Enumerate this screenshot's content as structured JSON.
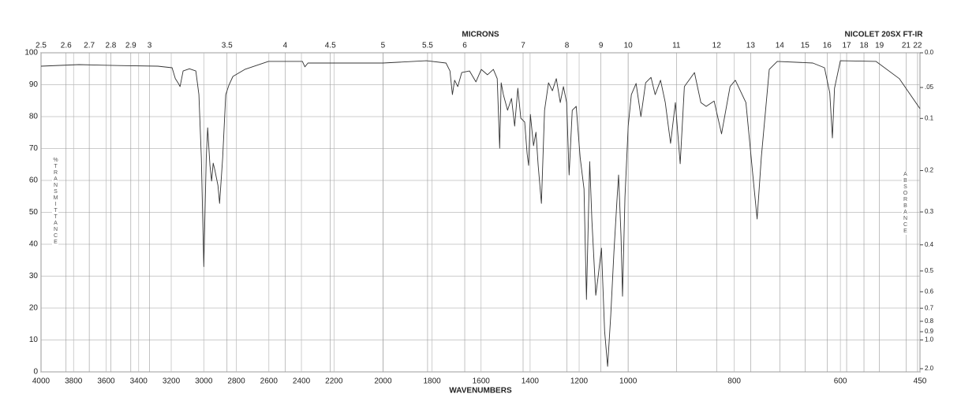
{
  "chart_data": {
    "type": "line",
    "title": "NICOLET 20SX FT-IR",
    "x_label": "WAVENUMBERS",
    "x2_label": "MICRONS",
    "y_label": "%TRANSMITTANCE",
    "y2_label": "ABSORBANCE",
    "xlim": [
      4000,
      450
    ],
    "xscale_breaks": [
      2200,
      1000
    ],
    "xticks": [
      4000,
      3800,
      3600,
      3400,
      3200,
      3000,
      2800,
      2600,
      2400,
      2200,
      2000,
      1800,
      1600,
      1400,
      1200,
      1000,
      800,
      600,
      450
    ],
    "x2ticks": [
      2.5,
      2.6,
      2.7,
      2.8,
      2.9,
      3,
      3.5,
      4,
      4.5,
      5,
      5.5,
      6,
      7,
      8,
      9,
      10,
      11,
      12,
      13,
      14,
      15,
      16,
      17,
      18,
      19,
      21,
      22
    ],
    "ylim": [
      0,
      100
    ],
    "yticks": [
      0,
      10,
      20,
      30,
      40,
      50,
      60,
      70,
      80,
      90,
      100
    ],
    "y2ticks": [
      {
        "value": 0,
        "label": "0.0"
      },
      {
        "value": 0.05,
        "label": ".05"
      },
      0.1,
      0.2,
      0.3,
      0.4,
      0.5,
      0.6,
      0.7,
      0.8,
      0.9,
      {
        "value": 1,
        "label": "1.0"
      },
      {
        "value": 2,
        "label": "2.0"
      }
    ],
    "grid": true,
    "color": "#333333",
    "x": [
      4000,
      3767,
      3524,
      3282,
      3195,
      3175,
      3156,
      3146,
      3127,
      3088,
      3049,
      3030,
      3015,
      3000,
      2985,
      2976,
      2962,
      2952,
      2942,
      2933,
      2913,
      2903,
      2884,
      2865,
      2845,
      2821,
      2748,
      2603,
      2394,
      2379,
      2360,
      2177,
      2000,
      1823,
      1743,
      1727,
      1717,
      1708,
      1695,
      1679,
      1647,
      1621,
      1599,
      1574,
      1550,
      1534,
      1524,
      1518,
      1509,
      1492,
      1476,
      1463,
      1450,
      1438,
      1422,
      1412,
      1406,
      1399,
      1386,
      1376,
      1367,
      1354,
      1341,
      1325,
      1309,
      1293,
      1277,
      1264,
      1251,
      1241,
      1228,
      1212,
      1196,
      1180,
      1170,
      1157,
      1148,
      1132,
      1122,
      1109,
      1096,
      1084,
      1071,
      1058,
      1045,
      1039,
      1029,
      1023,
      1013,
      1000,
      994,
      985,
      976,
      967,
      957,
      949,
      939,
      930,
      920,
      911,
      902,
      894,
      875,
      863,
      853,
      838,
      824,
      808,
      798,
      778,
      764,
      757,
      749,
      734,
      719,
      652,
      630,
      620,
      615,
      611,
      600,
      533,
      489,
      450
    ],
    "values": [
      95.8,
      96.3,
      96,
      95.8,
      95.3,
      91.9,
      90.4,
      89.4,
      94.3,
      95,
      94.3,
      86.9,
      67,
      33,
      67,
      76.5,
      64.7,
      59.8,
      65.4,
      63.5,
      58.5,
      52.8,
      67,
      86.9,
      89.9,
      92.6,
      94.8,
      97.3,
      97.3,
      95.6,
      96.8,
      96.8,
      96.8,
      97.5,
      96.8,
      94.3,
      86.9,
      91.4,
      89.4,
      93.8,
      94.3,
      90.9,
      94.8,
      93.1,
      94.8,
      91.9,
      70.1,
      90.6,
      86.9,
      82,
      85.7,
      77,
      88.9,
      79.5,
      78.3,
      68.4,
      64.7,
      80.7,
      70.9,
      75.1,
      64.7,
      52.8,
      82,
      90.6,
      88.1,
      91.9,
      84.4,
      89.4,
      84.4,
      61.7,
      82,
      83.2,
      67.2,
      57.3,
      22.7,
      65.9,
      47.4,
      24,
      30.1,
      38.8,
      12.8,
      1.7,
      17.8,
      37.5,
      54.8,
      61.7,
      42.5,
      23.7,
      54.8,
      77,
      86.9,
      90.4,
      80,
      90.6,
      92.3,
      86.9,
      91.4,
      84.4,
      71.6,
      84.4,
      65.2,
      89.4,
      93.8,
      84.4,
      83.2,
      84.9,
      74.6,
      89.4,
      91.4,
      84.4,
      59.8,
      47.9,
      67.2,
      94.8,
      97.3,
      96.8,
      95.3,
      87.4,
      73.3,
      88.9,
      97.5,
      97.3,
      91.9,
      82.5
    ]
  }
}
